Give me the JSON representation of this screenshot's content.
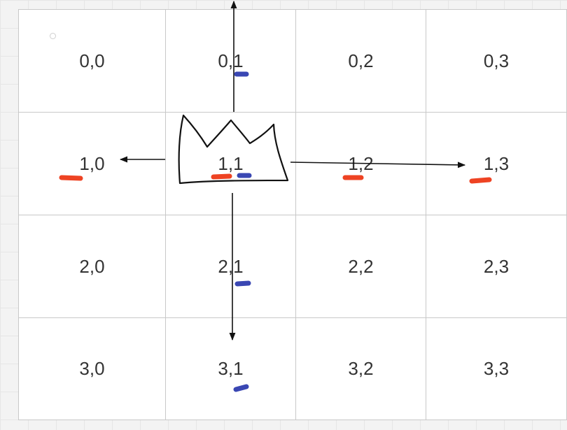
{
  "grid": {
    "rows": [
      [
        "0,0",
        "0,1",
        "0,2",
        "0,3"
      ],
      [
        "1,0",
        "1,1",
        "1,2",
        "1,3"
      ],
      [
        "2,0",
        "2,1",
        "2,2",
        "2,3"
      ],
      [
        "3,0",
        "3,1",
        "3,2",
        "3,3"
      ]
    ]
  },
  "icons": {
    "crown": "crown-icon",
    "red_mark": "red-dash-mark",
    "blue_mark": "blue-dash-mark"
  },
  "colors": {
    "red_mark": "#ee4323",
    "blue_mark": "#3a47b3",
    "arrow": "#111111",
    "grid_line": "#c8c8c8",
    "cell_text": "#333333"
  }
}
